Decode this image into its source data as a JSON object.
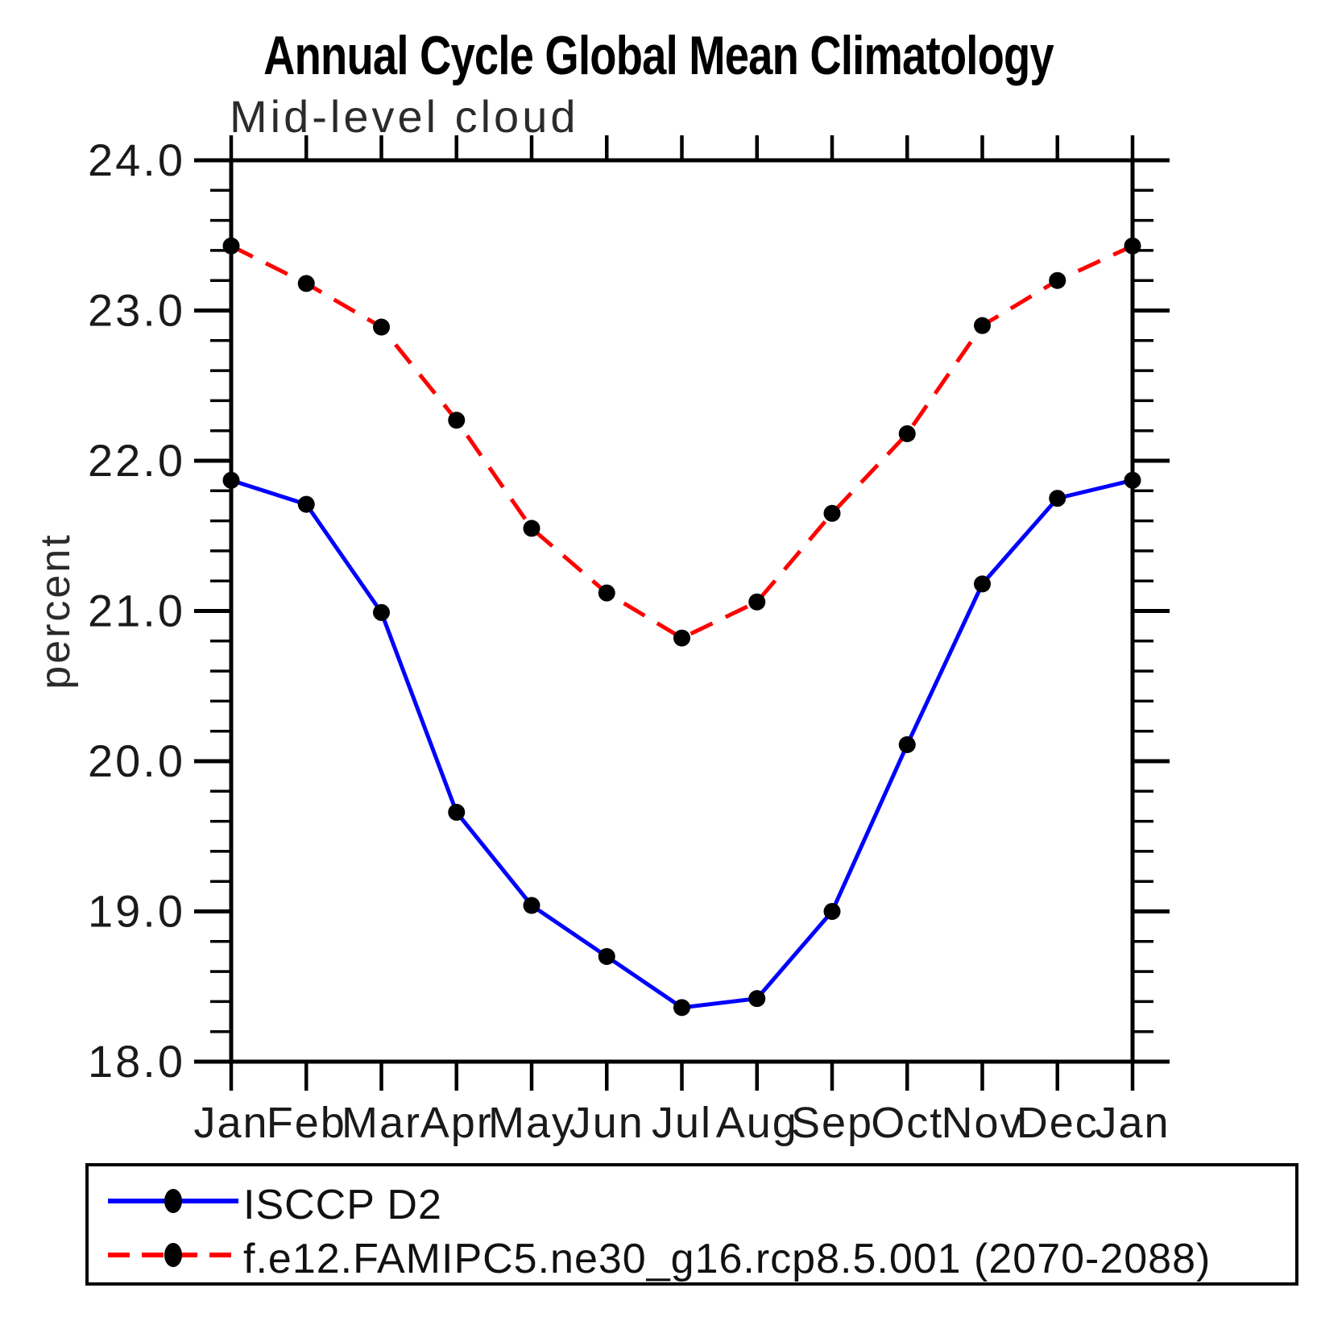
{
  "chart_data": {
    "type": "line",
    "title": "Annual Cycle Global Mean Climatology",
    "subtitle": "Mid-level cloud",
    "ylabel": "percent",
    "x_labels": [
      "Jan",
      "Feb",
      "Mar",
      "Apr",
      "May",
      "Jun",
      "Jul",
      "Aug",
      "Sep",
      "Oct",
      "Nov",
      "Dec",
      "Jan"
    ],
    "ylim": [
      18.0,
      24.0
    ],
    "y_major_step": 1.0,
    "y_minor_step": 0.2,
    "y_tick_labels": [
      "18.0",
      "19.0",
      "20.0",
      "21.0",
      "22.0",
      "23.0",
      "24.0"
    ],
    "grid": false,
    "legend_position": "bottom-left-box",
    "series": [
      {
        "name": "ISCCP D2",
        "color": "#0000ff",
        "line_style": "solid",
        "marker": "filled-circle",
        "marker_color": "#000000",
        "values": [
          21.87,
          21.71,
          20.99,
          19.66,
          19.04,
          18.7,
          18.36,
          18.42,
          19.0,
          20.11,
          21.18,
          21.75,
          21.87
        ]
      },
      {
        "name": "f.e12.FAMIPC5.ne30_g16.rcp8.5.001 (2070-2088)",
        "color": "#ff0000",
        "line_style": "dashed",
        "marker": "filled-circle",
        "marker_color": "#000000",
        "values": [
          23.43,
          23.18,
          22.89,
          22.27,
          21.55,
          21.12,
          20.82,
          21.06,
          21.65,
          22.18,
          22.9,
          23.2,
          23.43
        ]
      }
    ]
  }
}
